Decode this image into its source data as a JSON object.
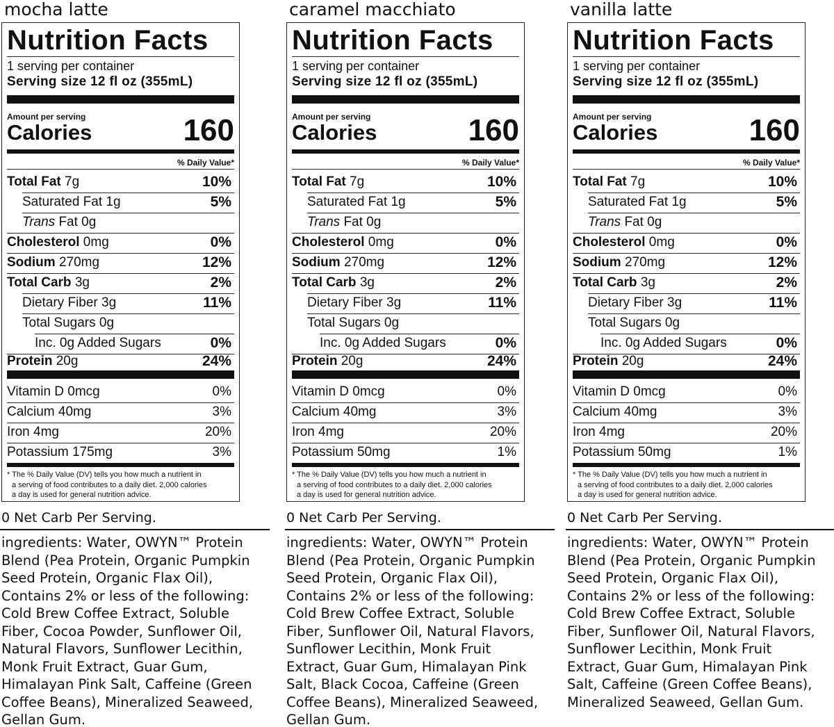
{
  "labels": [
    {
      "flavor": "mocha latte",
      "title": "Nutrition Facts",
      "servings_per_container": "1 serving per container",
      "serving_size": "Serving size  12 fl oz (355mL)",
      "amount_per_serving": "Amount per serving",
      "calories_label": "Calories",
      "calories": "160",
      "dv_header": "% Daily Value*",
      "nutrients": [
        {
          "bold": "Total Fat",
          "rest": " 7g",
          "dv": "10%"
        },
        {
          "bold": "",
          "rest": "Saturated Fat 1g",
          "dv": "5%"
        },
        {
          "bold": "",
          "rest": "Trans Fat 0g",
          "dv": ""
        },
        {
          "bold": "Cholesterol",
          "rest": " 0mg",
          "dv": "0%"
        },
        {
          "bold": "Sodium",
          "rest": " 270mg",
          "dv": "12%"
        },
        {
          "bold": "Total Carb",
          "rest": " 3g",
          "dv": "2%"
        },
        {
          "bold": "",
          "rest": "Dietary Fiber 3g",
          "dv": "11%"
        },
        {
          "bold": "",
          "rest": "Total Sugars 0g",
          "dv": ""
        },
        {
          "bold": "",
          "rest": "Inc. 0g Added Sugars",
          "dv": "0%"
        },
        {
          "bold": "Protein",
          "rest": " 20g",
          "dv": "24%"
        }
      ],
      "vitamins": [
        {
          "name": "Vitamin D 0mcg",
          "dv": "0%"
        },
        {
          "name": "Calcium 40mg",
          "dv": "3%"
        },
        {
          "name": "Iron 4mg",
          "dv": "20%"
        },
        {
          "name": "Potassium 175mg",
          "dv": "3%"
        }
      ],
      "footnote": [
        "* The % Daily Value (DV) tells you how much a nutrient in",
        "a serving of food contributes to a daily diet. 2,000 calories",
        "a day is used for general nutrition advice."
      ],
      "net_carb": "0 Net Carb Per Serving.",
      "ingredients": [
        "ingredients: Water, OWYN™ Protein",
        "Blend (Pea Protein, Organic Pumpkin",
        "Seed Protein, Organic Flax Oil),",
        "Contains 2% or less of the following:",
        "Cold Brew Coffee Extract, Soluble",
        "Fiber, Cocoa Powder, Sunflower Oil,",
        "Natural Flavors, Sunflower Lecithin,",
        "Monk Fruit Extract, Guar Gum,",
        "Himalayan Pink Salt, Caffeine (Green",
        "Coffee Beans), Mineralized Seaweed,",
        "Gellan Gum."
      ]
    },
    {
      "flavor": "caramel macchiato",
      "title": "Nutrition Facts",
      "servings_per_container": "1 serving per container",
      "serving_size": "Serving size  12 fl oz (355mL)",
      "amount_per_serving": "Amount per serving",
      "calories_label": "Calories",
      "calories": "160",
      "dv_header": "% Daily Value*",
      "nutrients": [
        {
          "bold": "Total Fat",
          "rest": " 7g",
          "dv": "10%"
        },
        {
          "bold": "",
          "rest": "Saturated Fat 1g",
          "dv": "5%"
        },
        {
          "bold": "",
          "rest": "Trans Fat 0g",
          "dv": ""
        },
        {
          "bold": "Cholesterol",
          "rest": " 0mg",
          "dv": "0%"
        },
        {
          "bold": "Sodium",
          "rest": " 270mg",
          "dv": "12%"
        },
        {
          "bold": "Total Carb",
          "rest": "  3g",
          "dv": "2%"
        },
        {
          "bold": "",
          "rest": "Dietary Fiber 3g",
          "dv": "11%"
        },
        {
          "bold": "",
          "rest": "Total Sugars 0g",
          "dv": ""
        },
        {
          "bold": "",
          "rest": "Inc. 0g Added Sugars",
          "dv": "0%"
        },
        {
          "bold": "Protein",
          "rest": " 20g",
          "dv": "24%"
        }
      ],
      "vitamins": [
        {
          "name": "Vitamin D 0mcg",
          "dv": "0%"
        },
        {
          "name": "Calcium 40mg",
          "dv": "3%"
        },
        {
          "name": "Iron 4mg",
          "dv": "20%"
        },
        {
          "name": "Potassium 50mg",
          "dv": "1%"
        }
      ],
      "footnote": [
        "* The % Daily Value (DV) tells you how much a nutrient in",
        "a serving of food contributes to a daily diet. 2,000 calories",
        "a day is used for general nutrition advice."
      ],
      "net_carb": "0 Net Carb Per Serving.",
      "ingredients": [
        "ingredients: Water, OWYN™ Protein",
        "Blend (Pea Protein, Organic Pumpkin",
        "Seed Protein, Organic Flax Oil),",
        "Contains 2% or less of the following:",
        "Cold Brew Coffee Extract, Soluble",
        "Fiber, Sunflower Oil, Natural Flavors,",
        "Sunflower Lecithin, Monk Fruit",
        "Extract, Guar Gum, Himalayan Pink",
        "Salt, Black Cocoa, Caffeine (Green",
        "Coffee Beans), Mineralized Seaweed,",
        "Gellan Gum."
      ]
    },
    {
      "flavor": "vanilla latte",
      "title": "Nutrition Facts",
      "servings_per_container": "1 serving per container",
      "serving_size": "Serving size  12 fl oz (355mL)",
      "amount_per_serving": "Amount per serving",
      "calories_label": "Calories",
      "calories": "160",
      "dv_header": "% Daily Value*",
      "nutrients": [
        {
          "bold": "Total Fat",
          "rest": " 7g",
          "dv": "10%"
        },
        {
          "bold": "",
          "rest": "Saturated Fat 1g",
          "dv": "5%"
        },
        {
          "bold": "",
          "rest": "Trans Fat 0g",
          "dv": ""
        },
        {
          "bold": "Cholesterol",
          "rest": " 0mg",
          "dv": "0%"
        },
        {
          "bold": "Sodium",
          "rest": " 270mg",
          "dv": "12%"
        },
        {
          "bold": "Total Carb",
          "rest": " 3g",
          "dv": "2%"
        },
        {
          "bold": "",
          "rest": "Dietary Fiber 3g",
          "dv": "11%"
        },
        {
          "bold": "",
          "rest": "Total Sugars 0g",
          "dv": ""
        },
        {
          "bold": "",
          "rest": "Inc. 0g Added Sugars",
          "dv": "0%"
        },
        {
          "bold": "Protein",
          "rest": " 20g",
          "dv": "24%"
        }
      ],
      "vitamins": [
        {
          "name": "Vitamin D 0mcg",
          "dv": "0%"
        },
        {
          "name": "Calcium 40mg",
          "dv": "3%"
        },
        {
          "name": "Iron 4mg",
          "dv": "20%"
        },
        {
          "name": "Potassium 50mg",
          "dv": "1%"
        }
      ],
      "footnote": [
        "* The % Daily Value (DV) tells you how much a nutrient in",
        "a serving of food contributes to a daily diet. 2,000 calories",
        "a day is used for general nutrition advice."
      ],
      "net_carb": "0 Net Carb Per Serving.",
      "ingredients": [
        "ingredients: Water, OWYN™ Protein",
        "Blend (Pea Protein, Organic Pumpkin",
        "Seed Protein, Organic Flax Oil),",
        "Contains 2% or less of the following:",
        "Cold Brew Coffee Extract, Soluble",
        "Fiber, Sunflower Oil, Natural Flavors,",
        "Sunflower Lecithin, Monk Fruit",
        "Extract, Guar Gum, Himalayan Pink",
        "Salt, Caffeine (Green Coffee Beans),",
        "Mineralized Seaweed, Gellan Gum."
      ]
    }
  ]
}
